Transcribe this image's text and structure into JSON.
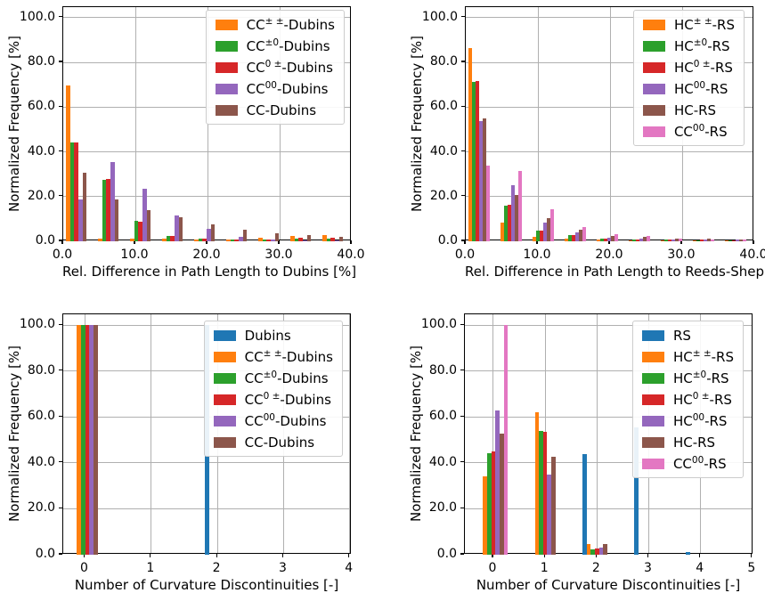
{
  "figure_background": "#ffffff",
  "grid_color": "#b0b0b0",
  "axis_color": "#000000",
  "palette": {
    "blue": "#1f77b4",
    "orange": "#ff7f0e",
    "green": "#2ca02c",
    "red": "#d62728",
    "purple": "#9467bd",
    "brown": "#8c564b",
    "pink": "#e377c2"
  },
  "chart_data": [
    {
      "type": "bar",
      "name": "histogram-path-length-dubins",
      "title": "",
      "xlabel": "Rel. Difference in Path Length to Dubins [%]",
      "ylabel": "Normalized Frequency [%]",
      "xlim": [
        0,
        40
      ],
      "ylim": [
        0,
        104.7
      ],
      "grid": true,
      "legend_position": "upper right",
      "xtick_values": [
        0,
        10,
        20,
        30,
        40
      ],
      "xtick_labels": [
        "0.0",
        "10.0",
        "20.0",
        "30.0",
        "40.0"
      ],
      "ytick_values": [
        0,
        20,
        40,
        60,
        80,
        100
      ],
      "ytick_labels": [
        "0.0",
        "20.0",
        "40.0",
        "60.0",
        "80.0",
        "100.0"
      ],
      "group_mode": "bin-left",
      "group_positions": [
        0,
        4.444,
        8.889,
        13.333,
        17.778,
        22.222,
        26.667,
        31.111,
        35.556
      ],
      "group_start_offset": 0.38,
      "bar_width": 0.57,
      "legend_offset": {
        "right": 6,
        "top": 3
      },
      "series": [
        {
          "label": "CC± ±-Dubins",
          "pre": "CC",
          "sup": "± ±",
          "post": "-Dubins",
          "color": "#ff7f0e",
          "values": [
            69.5,
            1.2,
            1.0,
            1.2,
            0.8,
            0.9,
            1.7,
            2.5,
            2.9
          ]
        },
        {
          "label": "CC±0-Dubins",
          "pre": "CC",
          "sup": "±0",
          "post": "-Dubins",
          "color": "#2ca02c",
          "values": [
            44.2,
            27.5,
            9.0,
            2.3,
            1.1,
            0.6,
            0.6,
            1.1,
            1.3
          ]
        },
        {
          "label": "CC0 ±-Dubins",
          "pre": "CC",
          "sup": "0 ±",
          "post": "-Dubins",
          "color": "#d62728",
          "values": [
            44.2,
            28.0,
            8.7,
            2.3,
            1.0,
            0.7,
            0.7,
            1.4,
            1.4
          ]
        },
        {
          "label": "CC00-Dubins",
          "pre": "CC",
          "sup": "00",
          "post": "-Dubins",
          "color": "#9467bd",
          "values": [
            18.9,
            35.4,
            23.5,
            11.6,
            5.4,
            1.9,
            0.8,
            0.4,
            0.4
          ]
        },
        {
          "label": "CC-Dubins",
          "pre": "CC",
          "sup": "",
          "post": "-Dubins",
          "color": "#8c564b",
          "values": [
            30.6,
            18.9,
            13.9,
            10.6,
            7.6,
            5.0,
            3.6,
            2.8,
            2.0
          ]
        }
      ]
    },
    {
      "type": "bar",
      "name": "histogram-path-length-reeds-shepp",
      "title": "",
      "xlabel": "Rel. Difference in Path Length to Reeds-Shepp [%]",
      "ylabel": "Normalized Frequency [%]",
      "xlim": [
        0,
        40
      ],
      "ylim": [
        0,
        104.7
      ],
      "grid": true,
      "legend_position": "upper right",
      "xtick_values": [
        0,
        10,
        20,
        30,
        40
      ],
      "xtick_labels": [
        "0.0",
        "10.0",
        "20.0",
        "30.0",
        "40.0"
      ],
      "ytick_values": [
        0,
        20,
        40,
        60,
        80,
        100
      ],
      "ytick_labels": [
        "0.0",
        "20.0",
        "40.0",
        "60.0",
        "80.0",
        "100.0"
      ],
      "group_mode": "bin-left",
      "group_positions": [
        0,
        4.444,
        8.889,
        13.333,
        17.778,
        22.222,
        26.667,
        31.111,
        35.556
      ],
      "group_start_offset": 0.32,
      "bar_width": 0.5,
      "legend_offset": {
        "right": 9,
        "top": 3
      },
      "series": [
        {
          "label": "HC± ±-RS",
          "pre": "HC",
          "sup": "± ±",
          "post": "-RS",
          "color": "#ff7f0e",
          "values": [
            86.5,
            8.2,
            2.0,
            1.0,
            0.6,
            0.5,
            0.4,
            0.4,
            0.3
          ]
        },
        {
          "label": "HC±0-RS",
          "pre": "HC",
          "sup": "±0",
          "post": "-RS",
          "color": "#2ca02c",
          "values": [
            71.2,
            16.0,
            4.6,
            2.6,
            1.1,
            0.7,
            0.7,
            0.5,
            0.4
          ]
        },
        {
          "label": "HC0 ±-RS",
          "pre": "HC",
          "sup": "0 ±",
          "post": "-RS",
          "color": "#d62728",
          "values": [
            71.6,
            16.4,
            4.6,
            2.9,
            1.3,
            0.8,
            0.8,
            0.8,
            0.5
          ]
        },
        {
          "label": "HC00-RS",
          "pre": "HC",
          "sup": "00",
          "post": "-RS",
          "color": "#9467bd",
          "values": [
            53.6,
            25.1,
            8.4,
            4.0,
            1.4,
            1.1,
            0.9,
            0.7,
            0.9
          ]
        },
        {
          "label": "HC-RS",
          "pre": "HC",
          "sup": "",
          "post": "-RS",
          "color": "#8c564b",
          "values": [
            54.9,
            20.9,
            10.2,
            5.3,
            2.3,
            1.8,
            1.2,
            1.3,
            0.8
          ]
        },
        {
          "label": "CC00-RS",
          "pre": "CC",
          "sup": "00",
          "post": "-RS",
          "color": "#e377c2",
          "values": [
            33.9,
            31.3,
            14.3,
            6.3,
            3.1,
            2.2,
            1.3,
            0.7,
            0.8
          ]
        }
      ]
    },
    {
      "type": "bar",
      "name": "histogram-curvature-discontinuities-dubins",
      "title": "",
      "xlabel": "Number of Curvature Discontinuities [-]",
      "ylabel": "Normalized Frequency [%]",
      "xlim": [
        -0.33,
        4.03
      ],
      "ylim": [
        0,
        104.7
      ],
      "grid": true,
      "legend_position": "upper right",
      "xtick_values": [
        0,
        1,
        2,
        3,
        4
      ],
      "xtick_labels": [
        "0",
        "1",
        "2",
        "3",
        "4"
      ],
      "ytick_values": [
        0,
        20,
        40,
        60,
        80,
        100
      ],
      "ytick_labels": [
        "0.0",
        "20.0",
        "40.0",
        "60.0",
        "80.0",
        "100.0"
      ],
      "group_mode": "center",
      "group_positions": [
        0,
        1,
        2,
        3,
        4
      ],
      "bar_width": 0.0635,
      "legend_offset": {
        "right": 8,
        "top": 7
      },
      "series": [
        {
          "label": "Dubins",
          "pre": "Dubins",
          "sup": "",
          "post": "",
          "color": "#1f77b4",
          "values": [
            0,
            0,
            100,
            0,
            0
          ]
        },
        {
          "label": "CC± ±-Dubins",
          "pre": "CC",
          "sup": "± ±",
          "post": "-Dubins",
          "color": "#ff7f0e",
          "values": [
            100,
            0,
            0,
            0,
            0
          ]
        },
        {
          "label": "CC±0-Dubins",
          "pre": "CC",
          "sup": "±0",
          "post": "-Dubins",
          "color": "#2ca02c",
          "values": [
            100,
            0,
            0,
            0,
            0
          ]
        },
        {
          "label": "CC0 ±-Dubins",
          "pre": "CC",
          "sup": "0 ±",
          "post": "-Dubins",
          "color": "#d62728",
          "values": [
            100,
            0,
            0,
            0,
            0
          ]
        },
        {
          "label": "CC00-Dubins",
          "pre": "CC",
          "sup": "00",
          "post": "-Dubins",
          "color": "#9467bd",
          "values": [
            100,
            0,
            0,
            0,
            0
          ]
        },
        {
          "label": "CC-Dubins",
          "pre": "CC",
          "sup": "",
          "post": "-Dubins",
          "color": "#8c564b",
          "values": [
            100,
            0,
            0,
            0,
            0
          ]
        }
      ]
    },
    {
      "type": "bar",
      "name": "histogram-curvature-discontinuities-reeds-shepp",
      "title": "",
      "xlabel": "Number of Curvature Discontinuities [-]",
      "ylabel": "Normalized Frequency [%]",
      "xlim": [
        -0.55,
        5.02
      ],
      "ylim": [
        0,
        104.7
      ],
      "grid": true,
      "legend_position": "upper right",
      "xtick_values": [
        0,
        1,
        2,
        3,
        4,
        5
      ],
      "xtick_labels": [
        "0",
        "1",
        "2",
        "3",
        "4",
        "5"
      ],
      "ytick_values": [
        0,
        20,
        40,
        60,
        80,
        100
      ],
      "ytick_labels": [
        "0.0",
        "20.0",
        "40.0",
        "60.0",
        "80.0",
        "100.0"
      ],
      "group_mode": "center",
      "group_positions": [
        0,
        1,
        2,
        3,
        4
      ],
      "bar_width": 0.08,
      "legend_offset": {
        "right": 9,
        "top": 7
      },
      "series": [
        {
          "label": "RS",
          "pre": "RS",
          "sup": "",
          "post": "",
          "color": "#1f77b4",
          "values": [
            0,
            0,
            43.8,
            55.5,
            1.2
          ]
        },
        {
          "label": "HC± ±-RS",
          "pre": "HC",
          "sup": "± ±",
          "post": "-RS",
          "color": "#ff7f0e",
          "values": [
            34.2,
            62.0,
            4.5,
            0,
            0
          ]
        },
        {
          "label": "HC±0-RS",
          "pre": "HC",
          "sup": "±0",
          "post": "-RS",
          "color": "#2ca02c",
          "values": [
            44.2,
            53.8,
            2.4,
            0,
            0
          ]
        },
        {
          "label": "HC0 ±-RS",
          "pre": "HC",
          "sup": "0 ±",
          "post": "-RS",
          "color": "#d62728",
          "values": [
            44.8,
            53.4,
            2.6,
            0,
            0
          ]
        },
        {
          "label": "HC00-RS",
          "pre": "HC",
          "sup": "00",
          "post": "-RS",
          "color": "#9467bd",
          "values": [
            62.8,
            35.0,
            3.1,
            0,
            0
          ]
        },
        {
          "label": "HC-RS",
          "pre": "HC",
          "sup": "",
          "post": "-RS",
          "color": "#8c564b",
          "values": [
            52.8,
            42.8,
            4.8,
            0,
            0
          ]
        },
        {
          "label": "CC00-RS",
          "pre": "CC",
          "sup": "00",
          "post": "-RS",
          "color": "#e377c2",
          "values": [
            100,
            0,
            0,
            0,
            0
          ]
        }
      ]
    }
  ]
}
